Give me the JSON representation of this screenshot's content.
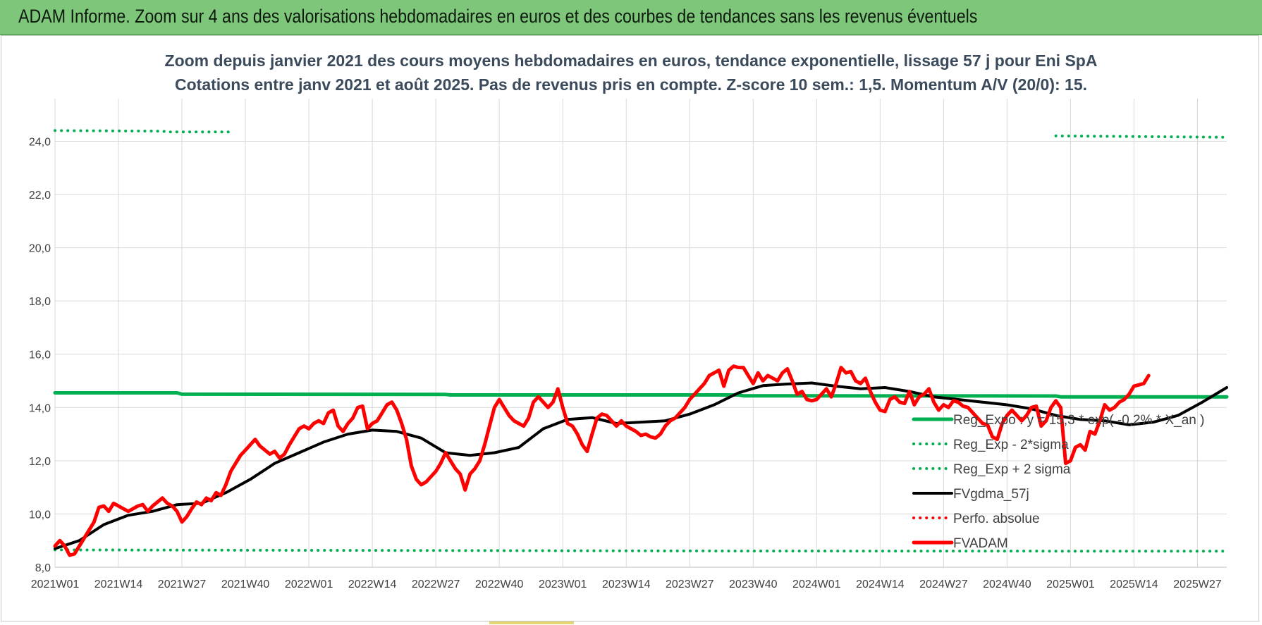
{
  "banner": {
    "title": "ADAM Informe. Zoom sur 4 ans des valorisations hebdomadaires en euros et des courbes de tendances sans les revenus éventuels"
  },
  "colors": {
    "banner": "#7dc67a",
    "reg_expo": "#00b050",
    "sigma": "#00b050",
    "fvgdma": "#000000",
    "perfo": "#ff0000",
    "fvadam": "#ff0000",
    "grid": "#d9d9d9"
  },
  "chart_data": {
    "type": "line",
    "title": "Zoom depuis janvier 2021 des cours moyens hebdomadaires en euros, tendance exponentielle, lissage 57 j pour Eni SpA",
    "subtitle": "Cotations entre janv 2021 et août 2025.  Pas de revenus pris en compte. Z-score 10 sem.: 1,5. Momentum A/V (20/0): 15.",
    "xlabel": "",
    "ylabel": "",
    "x_start": "2021W01",
    "weeks": 241,
    "x_ticks": [
      "2021W01",
      "2021W14",
      "2021W27",
      "2021W40",
      "2022W01",
      "2022W14",
      "2022W27",
      "2022W40",
      "2023W01",
      "2023W14",
      "2023W27",
      "2023W40",
      "2024W01",
      "2024W14",
      "2024W27",
      "2024W40",
      "2025W01",
      "2025W14",
      "2025W27"
    ],
    "x_ticks_index": [
      0,
      13,
      26,
      39,
      52,
      65,
      78,
      91,
      104,
      117,
      130,
      143,
      156,
      169,
      182,
      195,
      208,
      221,
      234
    ],
    "ylim": [
      8,
      25.6
    ],
    "y_ticks": [
      "8,0",
      "10,0",
      "12,0",
      "14,0",
      "16,0",
      "18,0",
      "20,0",
      "22,0",
      "24,0"
    ],
    "y_ticks_values": [
      8,
      10,
      12,
      14,
      16,
      18,
      20,
      22,
      24
    ],
    "grid": true,
    "legend_position": "bottom-right",
    "series": [
      {
        "name": "Reg_Expo : y = 15,3 * exp( -0,2% * X_an )",
        "style": "solid-thick",
        "color": "#00b050",
        "points": [
          [
            0,
            14.55
          ],
          [
            25,
            14.55
          ],
          [
            26,
            14.5
          ],
          [
            80,
            14.49
          ],
          [
            81,
            14.47
          ],
          [
            140,
            14.47
          ],
          [
            141,
            14.44
          ],
          [
            205,
            14.43
          ],
          [
            206,
            14.4
          ],
          [
            240,
            14.4
          ]
        ]
      },
      {
        "name": "Reg_Exp - 2*sigma",
        "style": "dotted",
        "color": "#00b050",
        "points": [
          [
            0,
            8.65
          ],
          [
            70,
            8.63
          ],
          [
            140,
            8.61
          ],
          [
            240,
            8.6
          ]
        ]
      },
      {
        "name": "Reg_Exp + 2 sigma",
        "style": "dotted",
        "color": "#00b050",
        "points": [
          [
            0,
            24.4
          ],
          [
            22,
            24.38
          ],
          [
            23,
            24.35
          ],
          [
            36,
            24.35
          ]
        ],
        "points2": [
          [
            205,
            24.2
          ],
          [
            240,
            24.15
          ]
        ]
      },
      {
        "name": "FVgdma_57j",
        "style": "solid",
        "color": "#000000",
        "points": [
          [
            0,
            8.7
          ],
          [
            5,
            9.0
          ],
          [
            10,
            9.6
          ],
          [
            15,
            9.95
          ],
          [
            20,
            10.1
          ],
          [
            25,
            10.35
          ],
          [
            30,
            10.4
          ],
          [
            35,
            10.8
          ],
          [
            40,
            11.3
          ],
          [
            45,
            11.9
          ],
          [
            50,
            12.3
          ],
          [
            55,
            12.7
          ],
          [
            60,
            13.0
          ],
          [
            65,
            13.15
          ],
          [
            70,
            13.1
          ],
          [
            75,
            12.85
          ],
          [
            80,
            12.3
          ],
          [
            85,
            12.2
          ],
          [
            90,
            12.3
          ],
          [
            95,
            12.5
          ],
          [
            100,
            13.2
          ],
          [
            105,
            13.55
          ],
          [
            110,
            13.62
          ],
          [
            115,
            13.4
          ],
          [
            120,
            13.45
          ],
          [
            125,
            13.5
          ],
          [
            130,
            13.75
          ],
          [
            135,
            14.1
          ],
          [
            140,
            14.55
          ],
          [
            145,
            14.82
          ],
          [
            150,
            14.88
          ],
          [
            155,
            14.92
          ],
          [
            160,
            14.8
          ],
          [
            165,
            14.7
          ],
          [
            170,
            14.75
          ],
          [
            175,
            14.6
          ],
          [
            180,
            14.4
          ],
          [
            185,
            14.3
          ],
          [
            190,
            14.2
          ],
          [
            195,
            14.1
          ],
          [
            200,
            13.95
          ],
          [
            205,
            13.7
          ],
          [
            210,
            13.55
          ],
          [
            215,
            13.5
          ],
          [
            220,
            13.35
          ],
          [
            225,
            13.45
          ],
          [
            230,
            13.7
          ],
          [
            235,
            14.2
          ],
          [
            240,
            14.75
          ]
        ]
      },
      {
        "name": "Perfo. absolue",
        "style": "dotted",
        "color": "#ff0000",
        "points": []
      },
      {
        "name": "FVADAM",
        "style": "solid-thick",
        "color": "#ff0000",
        "points": [
          [
            0,
            8.8
          ],
          [
            1,
            9.0
          ],
          [
            2,
            8.8
          ],
          [
            3,
            8.45
          ],
          [
            4,
            8.5
          ],
          [
            5,
            8.8
          ],
          [
            6,
            9.1
          ],
          [
            7,
            9.4
          ],
          [
            8,
            9.7
          ],
          [
            9,
            10.25
          ],
          [
            10,
            10.3
          ],
          [
            11,
            10.1
          ],
          [
            12,
            10.4
          ],
          [
            13,
            10.3
          ],
          [
            14,
            10.2
          ],
          [
            15,
            10.1
          ],
          [
            16,
            10.2
          ],
          [
            17,
            10.3
          ],
          [
            18,
            10.35
          ],
          [
            19,
            10.1
          ],
          [
            20,
            10.3
          ],
          [
            21,
            10.45
          ],
          [
            22,
            10.6
          ],
          [
            23,
            10.4
          ],
          [
            24,
            10.3
          ],
          [
            25,
            10.1
          ],
          [
            26,
            9.7
          ],
          [
            27,
            9.9
          ],
          [
            28,
            10.2
          ],
          [
            29,
            10.45
          ],
          [
            30,
            10.35
          ],
          [
            31,
            10.6
          ],
          [
            32,
            10.5
          ],
          [
            33,
            10.8
          ],
          [
            34,
            10.7
          ],
          [
            35,
            11.1
          ],
          [
            36,
            11.6
          ],
          [
            37,
            11.9
          ],
          [
            38,
            12.2
          ],
          [
            39,
            12.4
          ],
          [
            40,
            12.6
          ],
          [
            41,
            12.8
          ],
          [
            42,
            12.55
          ],
          [
            43,
            12.4
          ],
          [
            44,
            12.25
          ],
          [
            45,
            12.35
          ],
          [
            46,
            12.1
          ],
          [
            47,
            12.25
          ],
          [
            48,
            12.6
          ],
          [
            49,
            12.9
          ],
          [
            50,
            13.2
          ],
          [
            51,
            13.3
          ],
          [
            52,
            13.2
          ],
          [
            53,
            13.4
          ],
          [
            54,
            13.5
          ],
          [
            55,
            13.4
          ],
          [
            56,
            13.8
          ],
          [
            57,
            13.9
          ],
          [
            58,
            13.3
          ],
          [
            59,
            13.1
          ],
          [
            60,
            13.4
          ],
          [
            61,
            13.6
          ],
          [
            62,
            14.0
          ],
          [
            63,
            14.05
          ],
          [
            64,
            13.2
          ],
          [
            65,
            13.4
          ],
          [
            66,
            13.5
          ],
          [
            67,
            13.8
          ],
          [
            68,
            14.1
          ],
          [
            69,
            14.2
          ],
          [
            70,
            13.9
          ],
          [
            71,
            13.4
          ],
          [
            72,
            12.8
          ],
          [
            73,
            11.8
          ],
          [
            74,
            11.3
          ],
          [
            75,
            11.1
          ],
          [
            76,
            11.2
          ],
          [
            77,
            11.4
          ],
          [
            78,
            11.6
          ],
          [
            79,
            11.9
          ],
          [
            80,
            12.3
          ],
          [
            81,
            12.0
          ],
          [
            82,
            11.7
          ],
          [
            83,
            11.5
          ],
          [
            84,
            10.9
          ],
          [
            85,
            11.5
          ],
          [
            86,
            11.7
          ],
          [
            87,
            12.0
          ],
          [
            88,
            12.6
          ],
          [
            89,
            13.3
          ],
          [
            90,
            14.0
          ],
          [
            91,
            14.3
          ],
          [
            92,
            14.0
          ],
          [
            93,
            13.7
          ],
          [
            94,
            13.5
          ],
          [
            95,
            13.4
          ],
          [
            96,
            13.3
          ],
          [
            97,
            13.6
          ],
          [
            98,
            14.2
          ],
          [
            99,
            14.4
          ],
          [
            100,
            14.2
          ],
          [
            101,
            14.0
          ],
          [
            102,
            14.2
          ],
          [
            103,
            14.7
          ],
          [
            104,
            14.0
          ],
          [
            105,
            13.4
          ],
          [
            106,
            13.3
          ],
          [
            107,
            13.0
          ],
          [
            108,
            12.6
          ],
          [
            109,
            12.35
          ],
          [
            110,
            13.0
          ],
          [
            111,
            13.6
          ],
          [
            112,
            13.75
          ],
          [
            113,
            13.7
          ],
          [
            114,
            13.5
          ],
          [
            115,
            13.3
          ],
          [
            116,
            13.5
          ],
          [
            117,
            13.3
          ],
          [
            118,
            13.2
          ],
          [
            119,
            13.1
          ],
          [
            120,
            12.95
          ],
          [
            121,
            13.0
          ],
          [
            122,
            12.9
          ],
          [
            123,
            12.85
          ],
          [
            124,
            13.0
          ],
          [
            125,
            13.3
          ],
          [
            126,
            13.5
          ],
          [
            127,
            13.6
          ],
          [
            128,
            13.8
          ],
          [
            129,
            14.0
          ],
          [
            130,
            14.3
          ],
          [
            131,
            14.5
          ],
          [
            132,
            14.7
          ],
          [
            133,
            14.9
          ],
          [
            134,
            15.2
          ],
          [
            135,
            15.3
          ],
          [
            136,
            15.4
          ],
          [
            137,
            14.8
          ],
          [
            138,
            15.4
          ],
          [
            139,
            15.55
          ],
          [
            140,
            15.5
          ],
          [
            141,
            15.5
          ],
          [
            142,
            15.2
          ],
          [
            143,
            14.9
          ],
          [
            144,
            15.3
          ],
          [
            145,
            15.0
          ],
          [
            146,
            15.2
          ],
          [
            147,
            15.1
          ],
          [
            148,
            15.0
          ],
          [
            149,
            15.3
          ],
          [
            150,
            15.45
          ],
          [
            151,
            15.0
          ],
          [
            152,
            14.5
          ],
          [
            153,
            14.6
          ],
          [
            154,
            14.3
          ],
          [
            155,
            14.25
          ],
          [
            156,
            14.3
          ],
          [
            157,
            14.5
          ],
          [
            158,
            14.7
          ],
          [
            159,
            14.4
          ],
          [
            160,
            14.9
          ],
          [
            161,
            15.5
          ],
          [
            162,
            15.3
          ],
          [
            163,
            15.35
          ],
          [
            164,
            15.0
          ],
          [
            165,
            14.9
          ],
          [
            166,
            15.1
          ],
          [
            167,
            14.6
          ],
          [
            168,
            14.2
          ],
          [
            169,
            13.9
          ],
          [
            170,
            13.85
          ],
          [
            171,
            14.3
          ],
          [
            172,
            14.4
          ],
          [
            173,
            14.2
          ],
          [
            174,
            14.15
          ],
          [
            175,
            14.6
          ],
          [
            176,
            14.1
          ],
          [
            177,
            14.4
          ],
          [
            178,
            14.5
          ],
          [
            179,
            14.7
          ],
          [
            180,
            14.2
          ],
          [
            181,
            13.9
          ],
          [
            182,
            14.1
          ],
          [
            183,
            14.0
          ],
          [
            184,
            14.25
          ],
          [
            185,
            14.2
          ],
          [
            186,
            14.05
          ],
          [
            187,
            14.0
          ],
          [
            188,
            13.8
          ],
          [
            189,
            13.6
          ],
          [
            190,
            13.4
          ],
          [
            191,
            13.35
          ],
          [
            192,
            12.9
          ],
          [
            193,
            12.8
          ],
          [
            194,
            13.4
          ],
          [
            195,
            13.7
          ],
          [
            196,
            13.9
          ],
          [
            197,
            13.7
          ],
          [
            198,
            13.5
          ],
          [
            199,
            13.7
          ],
          [
            200,
            14.0
          ],
          [
            201,
            14.05
          ],
          [
            202,
            13.3
          ],
          [
            203,
            13.5
          ],
          [
            204,
            14.0
          ],
          [
            205,
            14.25
          ],
          [
            206,
            14.0
          ],
          [
            207,
            11.9
          ],
          [
            208,
            12.0
          ],
          [
            209,
            12.5
          ],
          [
            210,
            12.6
          ],
          [
            211,
            12.4
          ],
          [
            212,
            13.1
          ],
          [
            213,
            13.0
          ],
          [
            214,
            13.5
          ],
          [
            215,
            14.1
          ],
          [
            216,
            13.9
          ],
          [
            217,
            14.0
          ],
          [
            218,
            14.2
          ],
          [
            219,
            14.3
          ],
          [
            220,
            14.5
          ],
          [
            221,
            14.8
          ],
          [
            222,
            14.85
          ],
          [
            223,
            14.9
          ],
          [
            224,
            15.2
          ]
        ]
      }
    ]
  }
}
